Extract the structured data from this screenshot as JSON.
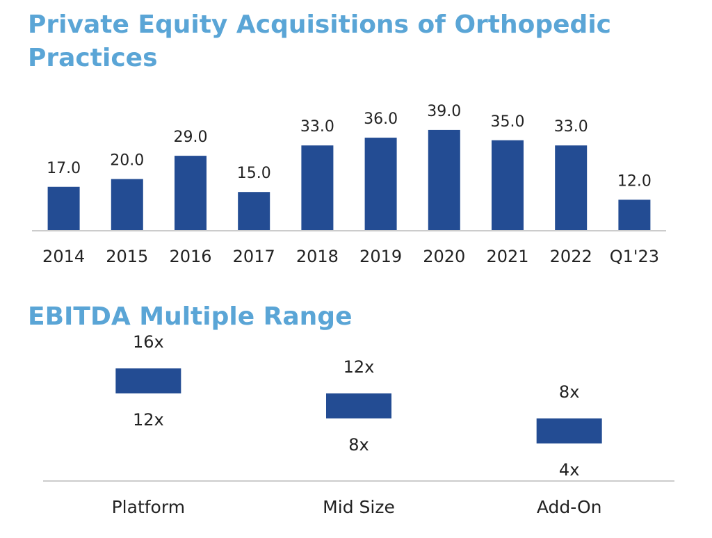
{
  "chart_data": [
    {
      "type": "bar",
      "title": "Private Equity Acquisitions of Orthopedic Practices",
      "categories": [
        "2014",
        "2015",
        "2016",
        "2017",
        "2018",
        "2019",
        "2020",
        "2021",
        "2022",
        "Q1'23"
      ],
      "values": [
        17.0,
        20.0,
        29.0,
        15.0,
        33.0,
        36.0,
        39.0,
        35.0,
        33.0,
        12.0
      ],
      "value_labels": [
        "17.0",
        "20.0",
        "29.0",
        "15.0",
        "33.0",
        "36.0",
        "39.0",
        "35.0",
        "33.0",
        "12.0"
      ],
      "xlabel": "",
      "ylabel": "",
      "ylim": [
        0,
        40
      ],
      "grid": false,
      "bar_color": "#234c93"
    },
    {
      "type": "floating-bar",
      "title": "EBITDA Multiple Range",
      "categories": [
        "Platform",
        "Mid Size",
        "Add-On"
      ],
      "low": [
        12,
        8,
        4
      ],
      "high": [
        16,
        12,
        8
      ],
      "high_labels": [
        "16x",
        "12x",
        "8x"
      ],
      "low_labels": [
        "12x",
        "8x",
        "4x"
      ],
      "xlabel": "",
      "ylabel": "",
      "grid": false,
      "bar_color": "#234c93"
    }
  ],
  "colors": {
    "title": "#5aa5d6",
    "bar": "#234c93",
    "axis": "#cccccc"
  }
}
